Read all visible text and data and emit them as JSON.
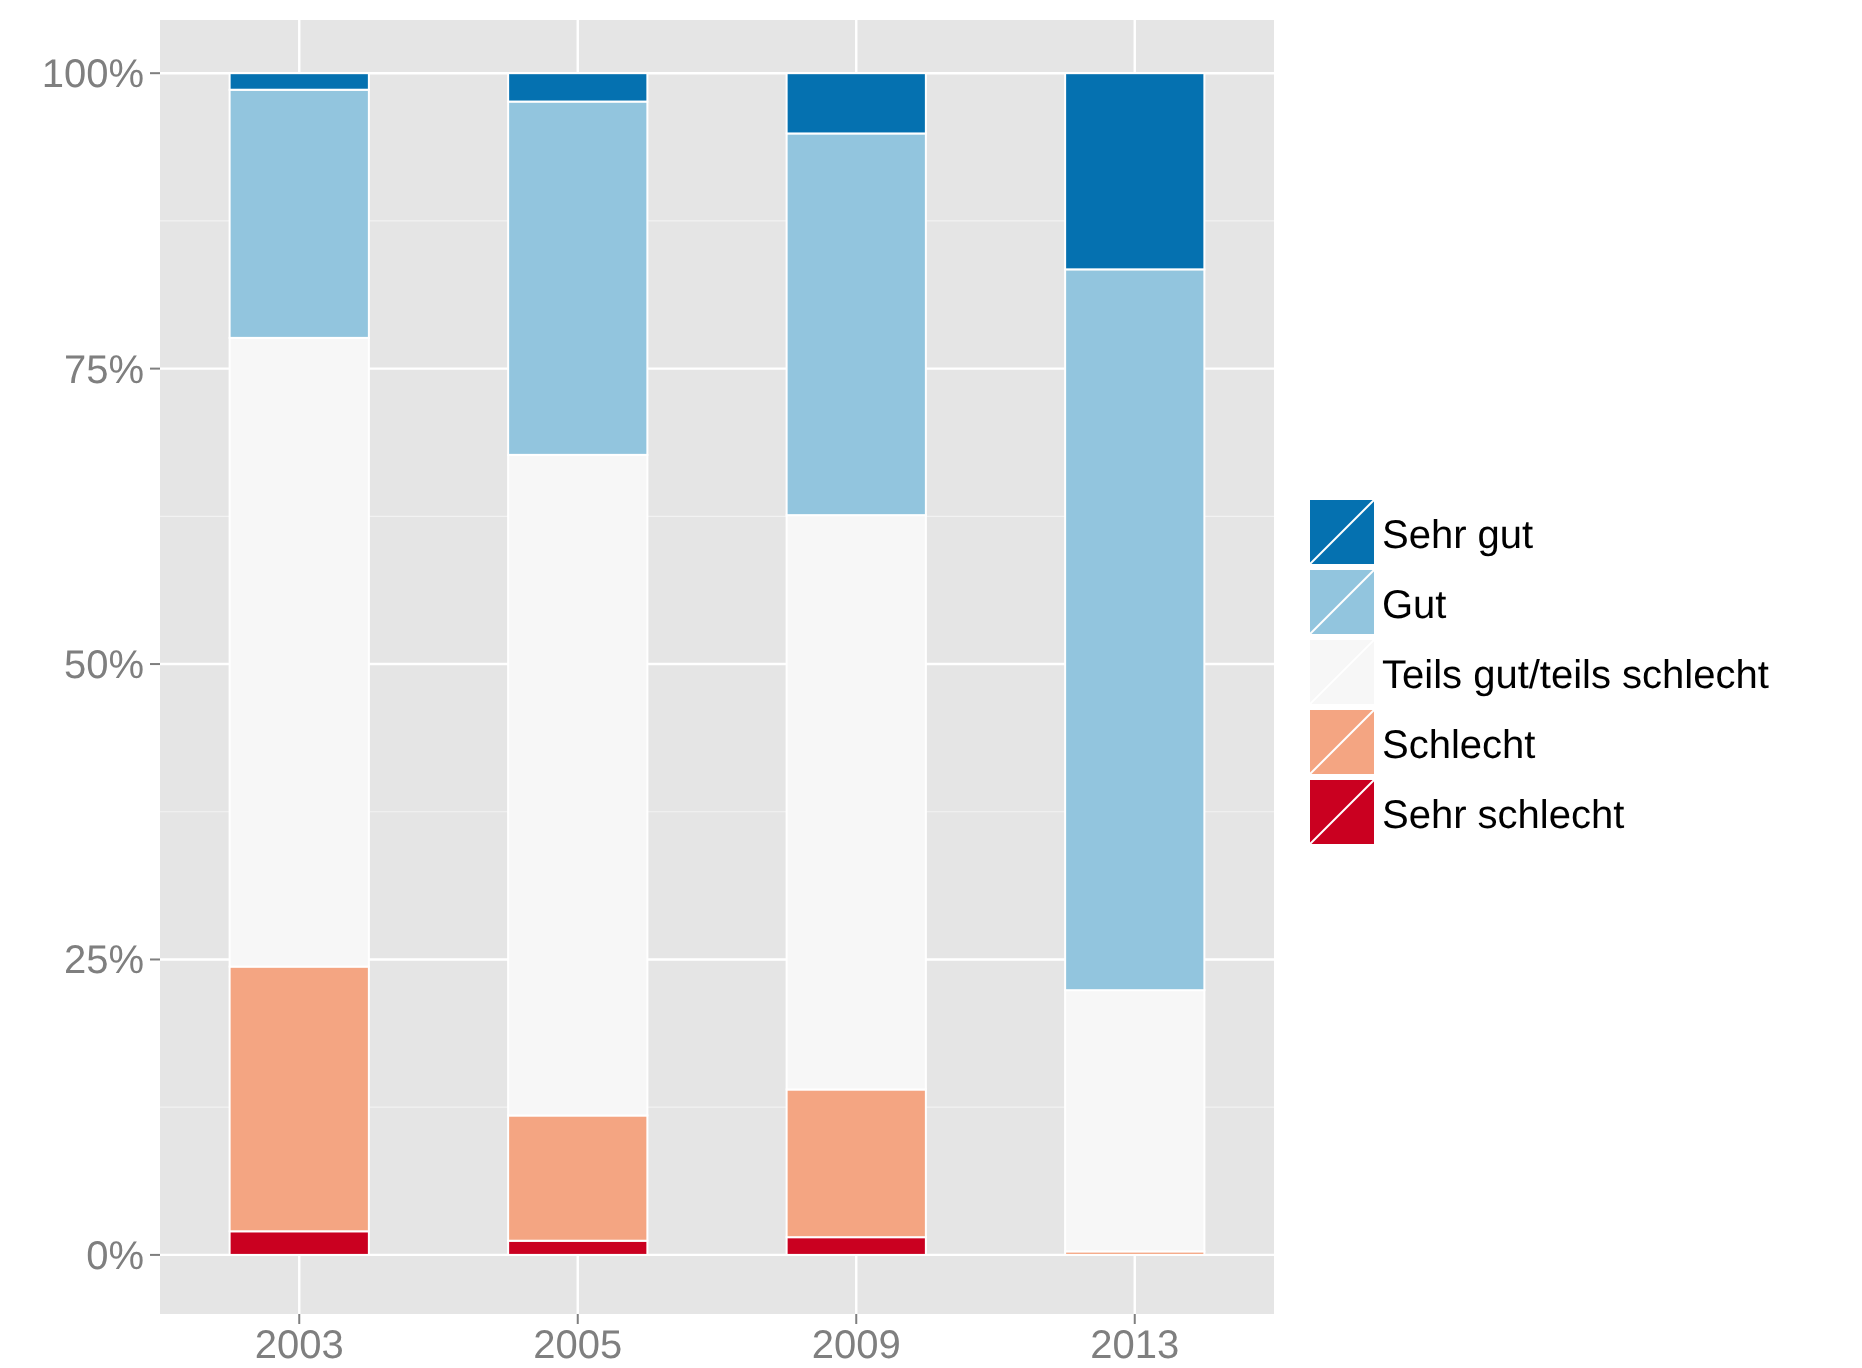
{
  "chart_data": {
    "type": "bar",
    "stacked": true,
    "categories": [
      "2003",
      "2005",
      "2009",
      "2013"
    ],
    "series": [
      {
        "name": "Sehr schlecht",
        "color": "#ca0020",
        "values": [
          2.0,
          1.2,
          1.5,
          0
        ]
      },
      {
        "name": "Schlecht",
        "color": "#f4a582",
        "values": [
          22.4,
          10.6,
          12.5,
          0.3
        ]
      },
      {
        "name": "Teils gut/teils schlecht",
        "color": "#f7f7f7",
        "values": [
          53.2,
          55.9,
          48.6,
          22.1
        ]
      },
      {
        "name": "Gut",
        "color": "#92c5de",
        "values": [
          21.0,
          29.9,
          32.3,
          61.0
        ]
      },
      {
        "name": "Sehr gut",
        "color": "#0571b0",
        "values": [
          1.4,
          2.4,
          5.1,
          16.6
        ]
      }
    ],
    "ylim": [
      -5,
      104.5
    ],
    "yticks": [
      {
        "value": 0,
        "label": "0%"
      },
      {
        "value": 25,
        "label": "25%"
      },
      {
        "value": 50,
        "label": "50%"
      },
      {
        "value": 75,
        "label": "75%"
      },
      {
        "value": 100,
        "label": "100%"
      }
    ],
    "grid": true,
    "legend": "right"
  }
}
